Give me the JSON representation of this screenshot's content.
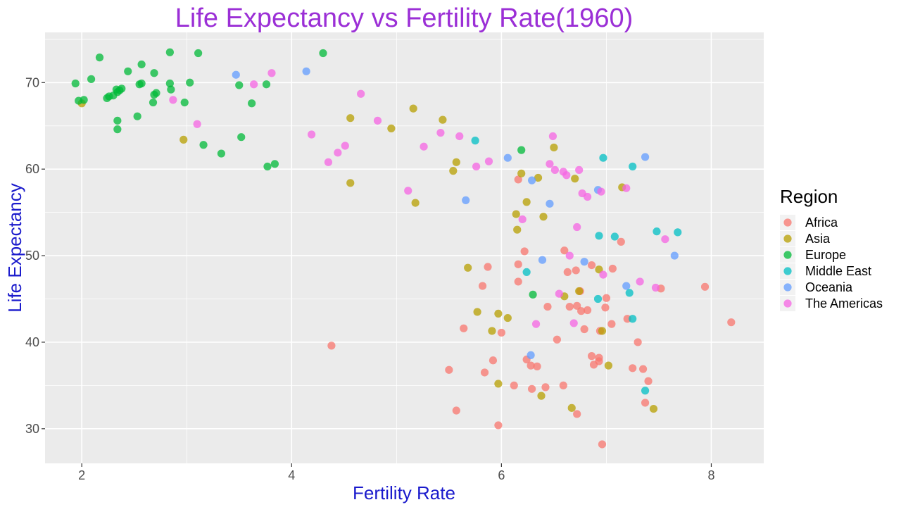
{
  "chart_data": {
    "type": "scatter",
    "title": "Life Expectancy vs Fertility Rate(1960)",
    "xlabel": "Fertility Rate",
    "ylabel": "Life Expectancy",
    "xlim": [
      1.65,
      8.5
    ],
    "ylim": [
      26.0,
      75.8
    ],
    "x_ticks": [
      2,
      4,
      6,
      8
    ],
    "y_ticks": [
      30,
      40,
      50,
      60,
      70
    ],
    "grid": true,
    "legend": {
      "title": "Region",
      "placement": "right"
    },
    "colors": {
      "title": "#9b2fd6",
      "axis_title": "#1a1acc",
      "panel": "#ebebeb",
      "grid": "#ffffff"
    },
    "series": [
      {
        "name": "Africa",
        "color": "#F8766D",
        "points": [
          [
            6.16,
            58.8
          ],
          [
            6.22,
            50.5
          ],
          [
            6.16,
            49.0
          ],
          [
            5.87,
            48.7
          ],
          [
            6.16,
            47.0
          ],
          [
            5.82,
            46.5
          ],
          [
            6.75,
            45.9
          ],
          [
            7.0,
            45.1
          ],
          [
            6.65,
            44.1
          ],
          [
            6.44,
            44.1
          ],
          [
            6.72,
            44.2
          ],
          [
            6.76,
            43.6
          ],
          [
            6.82,
            43.7
          ],
          [
            6.99,
            44.0
          ],
          [
            7.05,
            42.1
          ],
          [
            5.64,
            41.6
          ],
          [
            6.0,
            41.1
          ],
          [
            6.79,
            41.5
          ],
          [
            6.94,
            41.3
          ],
          [
            7.2,
            42.7
          ],
          [
            4.38,
            39.6
          ],
          [
            6.53,
            40.3
          ],
          [
            7.3,
            40.0
          ],
          [
            6.24,
            38.0
          ],
          [
            6.28,
            37.3
          ],
          [
            6.34,
            37.2
          ],
          [
            5.92,
            37.9
          ],
          [
            5.5,
            36.8
          ],
          [
            5.84,
            36.5
          ],
          [
            6.86,
            38.4
          ],
          [
            6.93,
            38.2
          ],
          [
            6.88,
            37.4
          ],
          [
            6.93,
            37.8
          ],
          [
            7.25,
            37.0
          ],
          [
            7.35,
            36.9
          ],
          [
            6.12,
            35.0
          ],
          [
            6.42,
            34.8
          ],
          [
            6.59,
            35.0
          ],
          [
            6.29,
            34.6
          ],
          [
            7.4,
            35.5
          ],
          [
            7.37,
            33.0
          ],
          [
            5.57,
            32.1
          ],
          [
            6.72,
            31.7
          ],
          [
            5.97,
            30.4
          ],
          [
            6.96,
            28.2
          ],
          [
            6.6,
            50.6
          ],
          [
            6.63,
            48.1
          ],
          [
            6.71,
            48.3
          ],
          [
            6.86,
            48.9
          ],
          [
            7.06,
            48.5
          ],
          [
            7.14,
            51.6
          ],
          [
            7.52,
            46.2
          ],
          [
            7.94,
            46.4
          ],
          [
            8.19,
            42.3
          ]
        ]
      },
      {
        "name": "Asia",
        "color": "#B79F00",
        "points": [
          [
            2.0,
            67.6
          ],
          [
            2.97,
            63.4
          ],
          [
            4.56,
            65.9
          ],
          [
            4.95,
            64.7
          ],
          [
            5.16,
            67.0
          ],
          [
            5.44,
            65.7
          ],
          [
            4.56,
            58.4
          ],
          [
            5.18,
            56.1
          ],
          [
            5.57,
            60.8
          ],
          [
            5.54,
            59.8
          ],
          [
            6.19,
            59.5
          ],
          [
            6.24,
            56.2
          ],
          [
            6.35,
            59.0
          ],
          [
            6.5,
            62.5
          ],
          [
            6.7,
            58.9
          ],
          [
            7.15,
            57.9
          ],
          [
            6.14,
            54.8
          ],
          [
            6.4,
            54.5
          ],
          [
            6.15,
            53.0
          ],
          [
            5.68,
            48.6
          ],
          [
            6.93,
            48.4
          ],
          [
            6.6,
            45.3
          ],
          [
            6.74,
            45.9
          ],
          [
            5.77,
            43.5
          ],
          [
            5.97,
            43.3
          ],
          [
            6.06,
            42.8
          ],
          [
            5.91,
            41.3
          ],
          [
            6.96,
            41.3
          ],
          [
            7.02,
            37.3
          ],
          [
            5.97,
            35.2
          ],
          [
            6.38,
            33.8
          ],
          [
            6.67,
            32.4
          ],
          [
            7.45,
            32.3
          ]
        ]
      },
      {
        "name": "Europe",
        "color": "#00BA38",
        "points": [
          [
            1.94,
            69.9
          ],
          [
            1.97,
            67.9
          ],
          [
            2.02,
            68.0
          ],
          [
            2.09,
            70.4
          ],
          [
            2.17,
            72.9
          ],
          [
            2.24,
            68.2
          ],
          [
            2.26,
            68.4
          ],
          [
            2.3,
            68.5
          ],
          [
            2.33,
            69.2
          ],
          [
            2.34,
            68.9
          ],
          [
            2.38,
            69.3
          ],
          [
            2.36,
            69.1
          ],
          [
            2.44,
            71.3
          ],
          [
            2.55,
            69.8
          ],
          [
            2.57,
            69.9
          ],
          [
            2.57,
            72.1
          ],
          [
            2.69,
            71.1
          ],
          [
            2.71,
            68.8
          ],
          [
            2.68,
            67.7
          ],
          [
            2.84,
            73.5
          ],
          [
            2.84,
            69.9
          ],
          [
            2.85,
            69.2
          ],
          [
            2.98,
            67.7
          ],
          [
            3.03,
            70.0
          ],
          [
            3.11,
            73.4
          ],
          [
            3.16,
            62.8
          ],
          [
            2.34,
            65.6
          ],
          [
            2.34,
            64.6
          ],
          [
            2.53,
            66.1
          ],
          [
            3.33,
            61.8
          ],
          [
            3.5,
            69.7
          ],
          [
            3.52,
            63.7
          ],
          [
            3.62,
            67.6
          ],
          [
            3.76,
            69.8
          ],
          [
            3.77,
            60.3
          ],
          [
            3.84,
            60.6
          ],
          [
            4.3,
            73.4
          ],
          [
            6.19,
            62.2
          ],
          [
            6.3,
            45.5
          ],
          [
            2.69,
            68.6
          ]
        ]
      },
      {
        "name": "Middle East",
        "color": "#00BFC4",
        "points": [
          [
            5.75,
            63.3
          ],
          [
            6.97,
            61.3
          ],
          [
            7.25,
            60.3
          ],
          [
            6.93,
            52.3
          ],
          [
            7.08,
            52.2
          ],
          [
            7.48,
            52.8
          ],
          [
            7.68,
            52.7
          ],
          [
            6.24,
            48.1
          ],
          [
            6.92,
            45.0
          ],
          [
            7.22,
            45.7
          ],
          [
            7.25,
            42.7
          ],
          [
            7.37,
            34.4
          ]
        ]
      },
      {
        "name": "Oceania",
        "color": "#619CFF",
        "points": [
          [
            3.47,
            70.9
          ],
          [
            4.14,
            71.3
          ],
          [
            5.66,
            56.4
          ],
          [
            6.06,
            61.3
          ],
          [
            6.29,
            58.7
          ],
          [
            6.46,
            56.0
          ],
          [
            6.92,
            57.6
          ],
          [
            7.37,
            61.4
          ],
          [
            6.39,
            49.5
          ],
          [
            6.79,
            49.3
          ],
          [
            7.19,
            46.5
          ],
          [
            7.65,
            50.0
          ],
          [
            6.28,
            38.5
          ]
        ]
      },
      {
        "name": "The Americas",
        "color": "#F564E3",
        "points": [
          [
            2.87,
            68.0
          ],
          [
            3.1,
            65.2
          ],
          [
            3.64,
            69.8
          ],
          [
            3.81,
            71.1
          ],
          [
            4.19,
            64.0
          ],
          [
            4.35,
            60.8
          ],
          [
            4.44,
            61.9
          ],
          [
            4.51,
            62.7
          ],
          [
            4.66,
            68.7
          ],
          [
            4.82,
            65.6
          ],
          [
            5.11,
            57.5
          ],
          [
            5.26,
            62.6
          ],
          [
            5.42,
            64.2
          ],
          [
            5.6,
            63.8
          ],
          [
            5.76,
            60.3
          ],
          [
            5.88,
            60.9
          ],
          [
            6.49,
            63.8
          ],
          [
            6.46,
            60.6
          ],
          [
            6.51,
            59.9
          ],
          [
            6.59,
            59.7
          ],
          [
            6.62,
            59.3
          ],
          [
            6.74,
            59.9
          ],
          [
            6.95,
            57.4
          ],
          [
            7.19,
            57.8
          ],
          [
            6.77,
            57.2
          ],
          [
            6.82,
            56.8
          ],
          [
            6.2,
            54.2
          ],
          [
            6.72,
            53.3
          ],
          [
            6.65,
            50.0
          ],
          [
            6.97,
            47.8
          ],
          [
            7.47,
            46.3
          ],
          [
            7.32,
            47.0
          ],
          [
            7.56,
            51.9
          ],
          [
            6.55,
            45.6
          ],
          [
            6.69,
            42.2
          ],
          [
            6.33,
            42.1
          ]
        ]
      }
    ]
  }
}
